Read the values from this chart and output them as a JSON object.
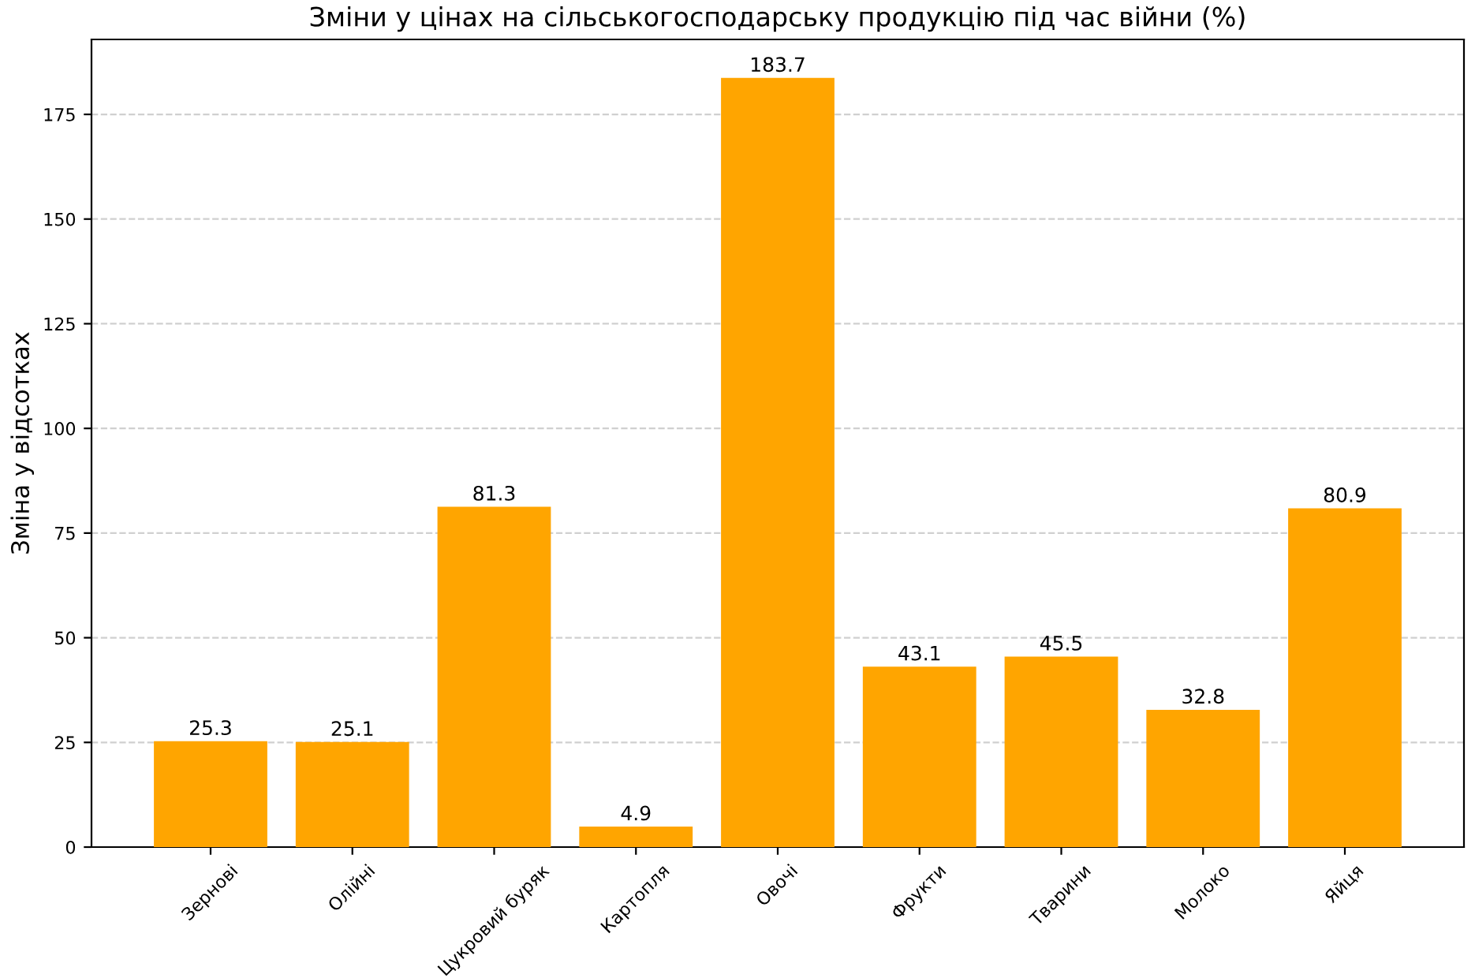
{
  "chart_data": {
    "type": "bar",
    "title": "Зміни у цінах на сільськогосподарську продукцію під час війни (%)",
    "ylabel": "Зміна у відсотках",
    "categories": [
      "Зернові",
      "Олійні",
      "Цукровий буряк",
      "Картопля",
      "Овочі",
      "Фрукти",
      "Тварини",
      "Молоко",
      "Яйця"
    ],
    "values": [
      25.3,
      25.1,
      81.3,
      4.9,
      183.7,
      43.1,
      45.5,
      32.8,
      80.9
    ],
    "color": "#ffa500",
    "ylim": [
      0,
      192.9
    ],
    "yticks": [
      0,
      25,
      50,
      75,
      100,
      125,
      150,
      175
    ],
    "grid": "y",
    "data_labels": true
  }
}
